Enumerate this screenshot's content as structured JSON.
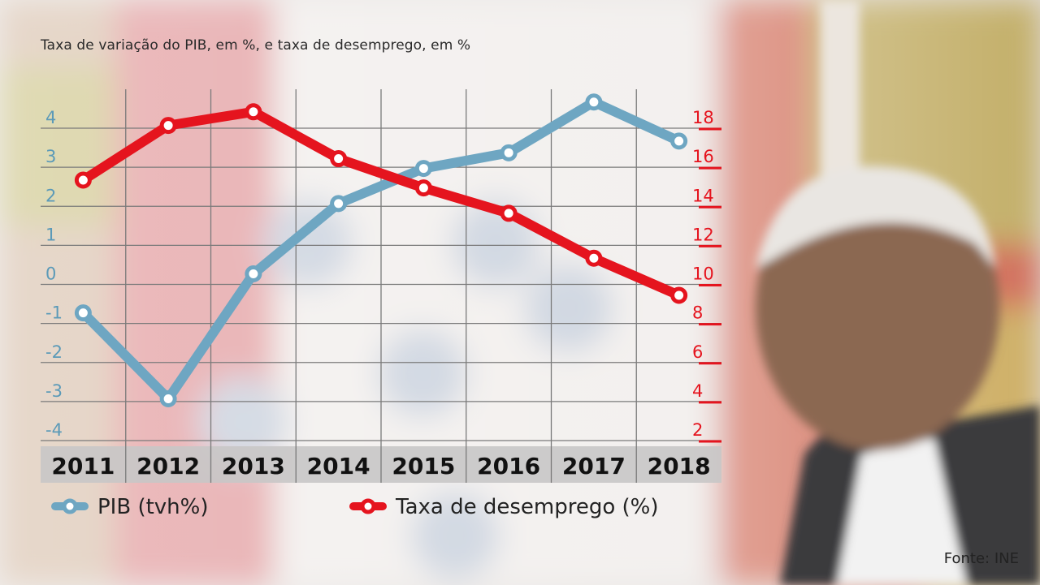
{
  "subtitle": "Taxa de variação do PIB, em %, e taxa de desemprego, em %",
  "source": "Fonte: INE",
  "colors": {
    "pib": "#6ea6c2",
    "desemprego": "#e5141e",
    "grid": "#7a7a7a",
    "year_band": "#c8c6c6"
  },
  "chart_data": {
    "type": "line",
    "title": "Taxa de variação do PIB, em %, e taxa de desemprego, em %",
    "categories": [
      "2011",
      "2012",
      "2013",
      "2014",
      "2015",
      "2016",
      "2017",
      "2018"
    ],
    "y_left": {
      "ticks": [
        "4",
        "3",
        "2",
        "1",
        "0",
        "-1",
        "-2",
        "-3",
        "-4"
      ],
      "range": [
        -4,
        4
      ]
    },
    "y_right": {
      "ticks": [
        "18",
        "16",
        "14",
        "12",
        "10",
        "8",
        "6",
        "4",
        "2"
      ],
      "range": [
        2,
        18
      ]
    },
    "grid": true,
    "legend_position": "bottom",
    "series": [
      {
        "name": "PIB (tvh%)",
        "axis": "left",
        "values": [
          -1.0,
          -3.2,
          0.0,
          1.8,
          2.7,
          3.1,
          4.4,
          3.4
        ]
      },
      {
        "name": "Taxa de desemprego (%)",
        "axis": "right",
        "values": [
          14.8,
          17.6,
          18.3,
          15.9,
          14.4,
          13.1,
          10.8,
          8.9
        ]
      }
    ]
  }
}
